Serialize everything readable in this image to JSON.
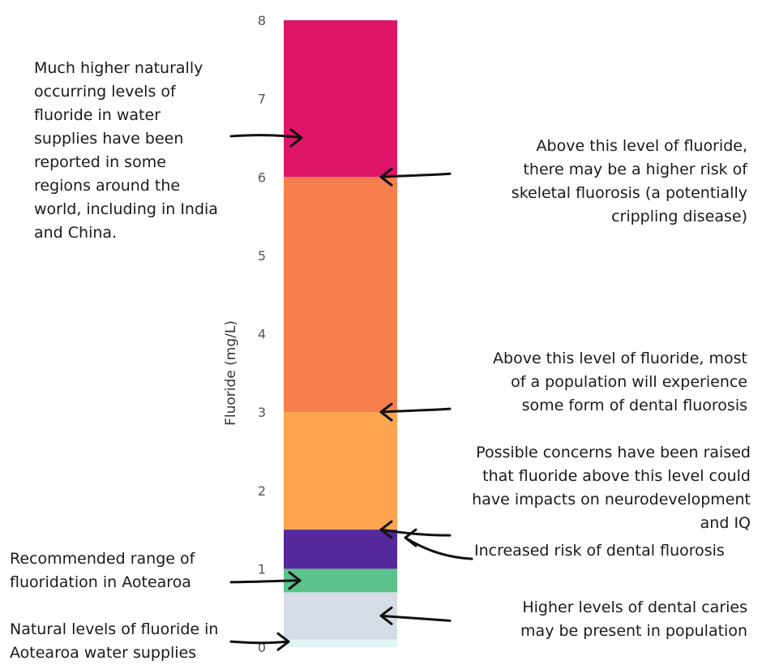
{
  "chart_data": {
    "type": "bar",
    "ylabel": "Fluoride (mg/L)",
    "ylim": [
      0,
      8
    ],
    "ticks": [
      "0",
      "1",
      "2",
      "3",
      "4",
      "5",
      "6",
      "7",
      "8"
    ],
    "bands": [
      {
        "from": 0,
        "to": 0.1,
        "color": "#e0f6f6"
      },
      {
        "from": 0.1,
        "to": 0.7,
        "color": "#d5dce6"
      },
      {
        "from": 0.7,
        "to": 1.0,
        "color": "#5cc28b"
      },
      {
        "from": 1.0,
        "to": 1.5,
        "color": "#55299c"
      },
      {
        "from": 1.5,
        "to": 3.0,
        "color": "#fca450"
      },
      {
        "from": 3.0,
        "to": 6.0,
        "color": "#f77f4d"
      },
      {
        "from": 6.0,
        "to": 8.0,
        "color": "#de1468"
      }
    ],
    "annotations": [
      {
        "text": "Much higher naturally\noccurring levels of\nfluoride in water\nsupplies have been\nreported in some\nregions around the\nworld, including in India\nand China.",
        "side": "left",
        "value": 6.5
      },
      {
        "text": "Above this level of fluoride,\nthere may be a higher risk of\nskeletal fluorosis (a potentially\ncrippling disease)",
        "side": "right",
        "value": 6.0
      },
      {
        "text": "Above this level of fluoride, most\nof a population will experience\nsome form of dental fluorosis",
        "side": "right",
        "value": 3.0
      },
      {
        "text": "Possible concerns have been raised\nthat fluoride above this level could\nhave impacts on neurodevelopment\nand IQ",
        "side": "right",
        "value": 1.5
      },
      {
        "text": "Increased risk of dental fluorosis",
        "side": "right",
        "value": 1.5
      },
      {
        "text": "Recommended range of\nfluoridation in Aotearoa",
        "side": "left",
        "value": 0.85
      },
      {
        "text": "Higher levels of dental caries\nmay be present in population",
        "side": "right",
        "value": 0.4
      },
      {
        "text": "Natural levels of fluoride in\nAotearoa water supplies",
        "side": "left",
        "value": 0.05
      }
    ]
  }
}
